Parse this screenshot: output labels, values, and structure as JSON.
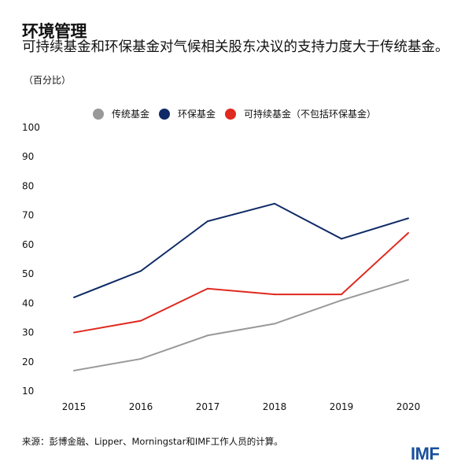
{
  "header": {
    "title": "环境管理",
    "subtitle": "可持续基金和环保基金对气候相关股东决议的支持力度大于传统基金。",
    "unit": "（百分比）"
  },
  "footer": {
    "source": "来源：彭博金融、Lipper、Morningstar和IMF工作人员的计算。",
    "logo": "IMF"
  },
  "chart_data": {
    "type": "line",
    "title": "环境管理",
    "ylabel": "（百分比）",
    "x": [
      "2015",
      "2016",
      "2017",
      "2018",
      "2019",
      "2020"
    ],
    "ylim": [
      10,
      100
    ],
    "yticks": [
      "100",
      "90",
      "80",
      "70",
      "60",
      "50",
      "40",
      "30",
      "20",
      "10"
    ],
    "grid": false,
    "legend_position": "top",
    "series": [
      {
        "name": "传统基金",
        "color": "#999999",
        "values": [
          17,
          21,
          29,
          33,
          41,
          48
        ]
      },
      {
        "name": "环保基金",
        "color": "#0f2a66",
        "values": [
          42,
          51,
          68,
          74,
          62,
          69
        ]
      },
      {
        "name": "可持续基金（不包括环保基金）",
        "color": "#e0291f",
        "values": [
          30,
          34,
          45,
          43,
          43,
          64
        ]
      }
    ]
  }
}
